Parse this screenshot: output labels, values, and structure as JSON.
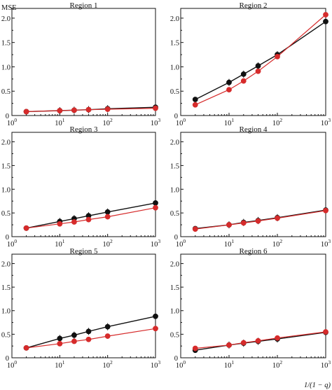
{
  "figure": {
    "ylabel": "MSE",
    "xlabel": "1/(1 − q)"
  },
  "chart_data": [
    {
      "type": "line",
      "title": "Region 1",
      "x": [
        2,
        10,
        20,
        40,
        100,
        1000
      ],
      "ylim": [
        0,
        2.2
      ],
      "yticks": [
        "0",
        "0.5",
        "1.0",
        "1.5",
        "2.0"
      ],
      "xticks": [
        "10^0",
        "10^1",
        "10^2",
        "10^3"
      ],
      "xscale": "log",
      "grid": false,
      "series": [
        {
          "color": "#111111",
          "values": [
            0.08,
            0.1,
            0.11,
            0.12,
            0.14,
            0.17
          ]
        },
        {
          "color": "#d62b2b",
          "values": [
            0.08,
            0.1,
            0.11,
            0.12,
            0.13,
            0.15
          ]
        }
      ]
    },
    {
      "type": "line",
      "title": "Region 2",
      "x": [
        2,
        10,
        20,
        40,
        100,
        1000
      ],
      "ylim": [
        0,
        2.2
      ],
      "yticks": [
        "0",
        "0.5",
        "1.0",
        "1.5",
        "2.0"
      ],
      "xticks": [
        "10^0",
        "10^1",
        "10^2",
        "10^3"
      ],
      "xscale": "log",
      "grid": false,
      "series": [
        {
          "color": "#111111",
          "values": [
            0.33,
            0.68,
            0.85,
            1.02,
            1.25,
            1.93
          ]
        },
        {
          "color": "#d62b2b",
          "values": [
            0.22,
            0.53,
            0.71,
            0.91,
            1.21,
            2.07
          ]
        }
      ]
    },
    {
      "type": "line",
      "title": "Region 3",
      "x": [
        2,
        10,
        20,
        40,
        100,
        1000
      ],
      "ylim": [
        0,
        2.2
      ],
      "yticks": [
        "0",
        "0.5",
        "1.0",
        "1.5",
        "2.0"
      ],
      "xticks": [
        "10^0",
        "10^1",
        "10^2",
        "10^3"
      ],
      "xscale": "log",
      "grid": false,
      "series": [
        {
          "color": "#111111",
          "values": [
            0.18,
            0.32,
            0.38,
            0.44,
            0.52,
            0.71
          ]
        },
        {
          "color": "#d62b2b",
          "values": [
            0.18,
            0.27,
            0.31,
            0.36,
            0.42,
            0.61
          ]
        }
      ]
    },
    {
      "type": "line",
      "title": "Region 4",
      "x": [
        2,
        10,
        20,
        40,
        100,
        1000
      ],
      "ylim": [
        0,
        2.2
      ],
      "yticks": [
        "0",
        "0.5",
        "1.0",
        "1.5",
        "2.0"
      ],
      "xticks": [
        "10^0",
        "10^1",
        "10^2",
        "10^3"
      ],
      "xscale": "log",
      "grid": false,
      "series": [
        {
          "color": "#111111",
          "values": [
            0.17,
            0.25,
            0.3,
            0.34,
            0.4,
            0.56
          ]
        },
        {
          "color": "#d62b2b",
          "values": [
            0.16,
            0.25,
            0.29,
            0.33,
            0.39,
            0.55
          ]
        }
      ]
    },
    {
      "type": "line",
      "title": "Region 5",
      "x": [
        2,
        10,
        20,
        40,
        100,
        1000
      ],
      "ylim": [
        0,
        2.2
      ],
      "yticks": [
        "0",
        "0.5",
        "1.0",
        "1.5",
        "2.0"
      ],
      "xticks": [
        "10^0",
        "10^1",
        "10^2",
        "10^3"
      ],
      "xscale": "log",
      "grid": false,
      "series": [
        {
          "color": "#111111",
          "values": [
            0.21,
            0.41,
            0.48,
            0.56,
            0.66,
            0.88
          ]
        },
        {
          "color": "#d62b2b",
          "values": [
            0.21,
            0.3,
            0.35,
            0.39,
            0.46,
            0.62
          ]
        }
      ]
    },
    {
      "type": "line",
      "title": "Region 6",
      "x": [
        2,
        10,
        20,
        40,
        100,
        1000
      ],
      "ylim": [
        0,
        2.2
      ],
      "yticks": [
        "0",
        "0.5",
        "1.0",
        "1.5",
        "2.0"
      ],
      "xticks": [
        "10^0",
        "10^1",
        "10^2",
        "10^3"
      ],
      "xscale": "log",
      "grid": false,
      "series": [
        {
          "color": "#111111",
          "values": [
            0.16,
            0.27,
            0.31,
            0.35,
            0.4,
            0.54
          ]
        },
        {
          "color": "#d62b2b",
          "values": [
            0.2,
            0.27,
            0.32,
            0.36,
            0.42,
            0.55
          ]
        }
      ]
    }
  ]
}
